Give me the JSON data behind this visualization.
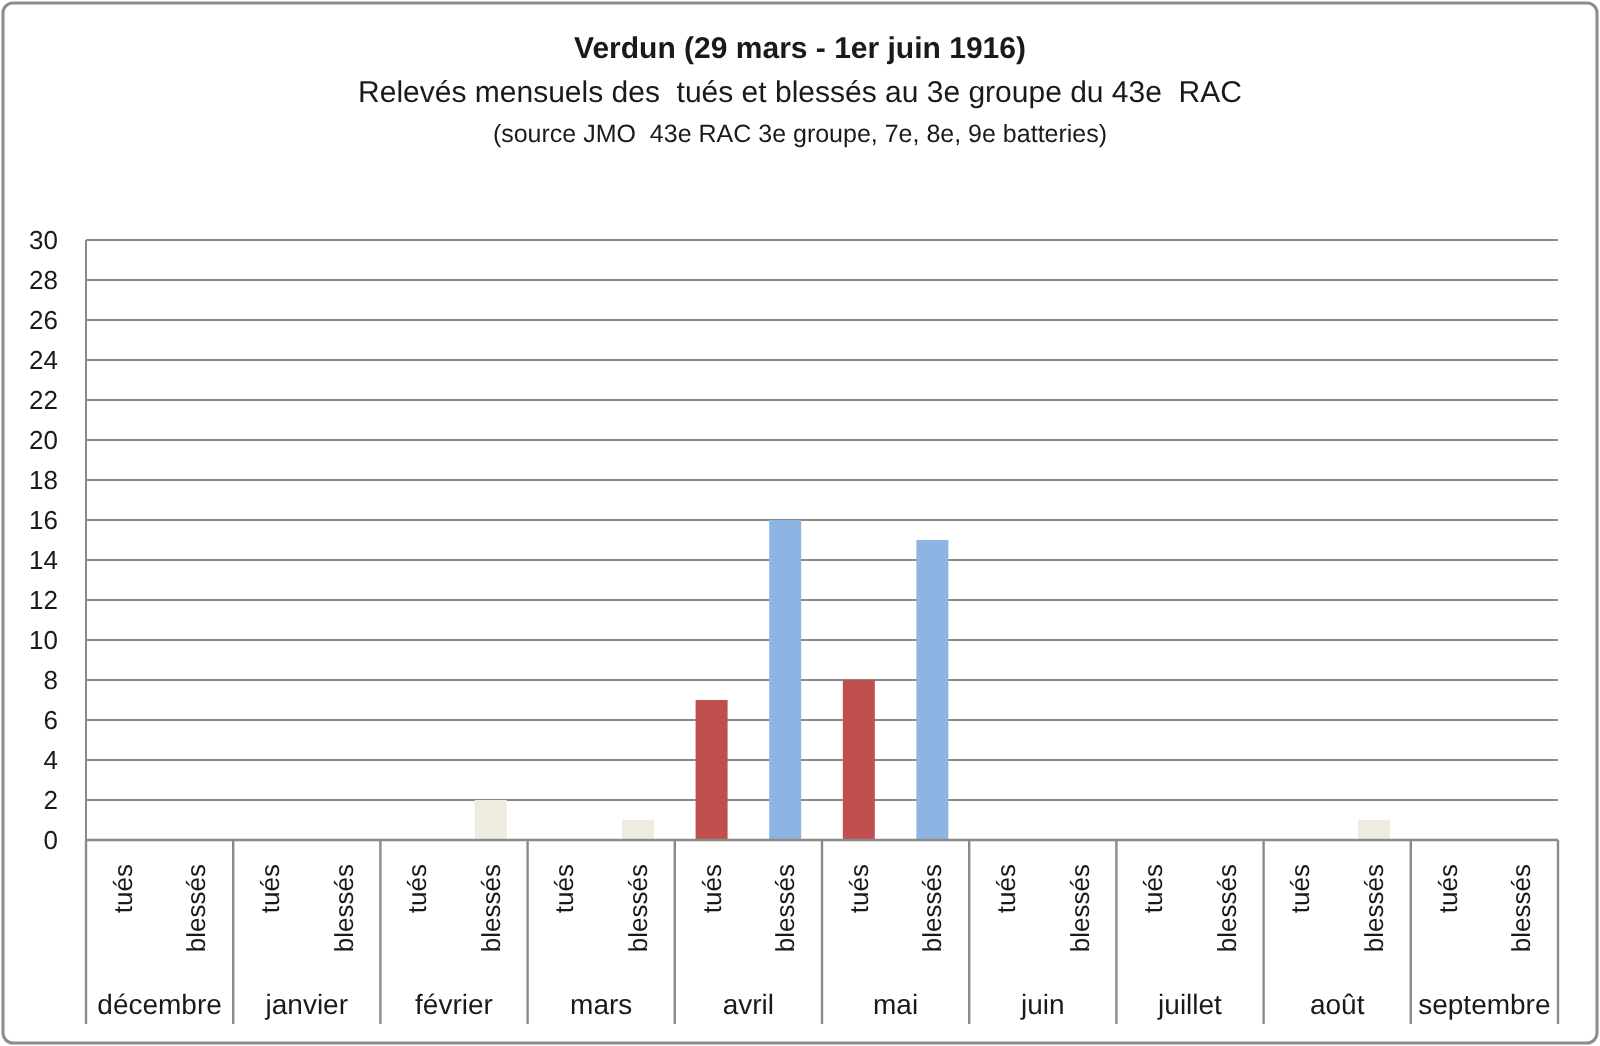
{
  "chart_data": {
    "type": "bar",
    "title": "Verdun (29 mars - 1er juin 1916)",
    "subtitle": "Relevés mensuels des  tués et blessés au 3e groupe du 43e  RAC",
    "annotations": [
      "(source JMO  43e RAC 3e groupe, 7e, 8e, 9e batteries)"
    ],
    "categories": [
      "décembre",
      "janvier",
      "février",
      "mars",
      "avril",
      "mai",
      "juin",
      "juillet",
      "août",
      "septembre"
    ],
    "series": [
      {
        "name": "tués",
        "color": "#c0504d",
        "values": [
          0,
          0,
          0,
          0,
          7,
          8,
          0,
          0,
          0,
          0
        ]
      },
      {
        "name": "blessés",
        "colors": [
          null,
          null,
          "#eeece1",
          "#eeece1",
          "#8db4e2",
          "#8db4e2",
          null,
          null,
          "#eeece1",
          null
        ],
        "values": [
          0,
          0,
          2,
          1,
          16,
          15,
          0,
          0,
          1,
          0
        ]
      }
    ],
    "ylim": [
      0,
      30
    ],
    "yticks": [
      0,
      2,
      4,
      6,
      8,
      10,
      12,
      14,
      16,
      18,
      20,
      22,
      24,
      26,
      28,
      30
    ],
    "grid": "y"
  }
}
